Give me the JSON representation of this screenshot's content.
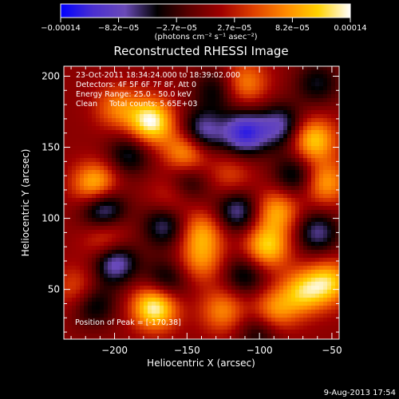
{
  "chart_data": {
    "type": "heatmap",
    "title": "Reconstructed RHESSI Image",
    "xlabel": "Heliocentric X (arcsec)",
    "ylabel": "Heliocentric Y (arcsec)",
    "xlim": [
      -235,
      -45
    ],
    "ylim": [
      15,
      207
    ],
    "x_ticks": [
      -200,
      -150,
      -100,
      -50
    ],
    "x_tick_labels": [
      "−200",
      "−150",
      "−100",
      "−50"
    ],
    "y_ticks": [
      50,
      100,
      150,
      200
    ],
    "y_tick_labels": [
      "50",
      "100",
      "150",
      "200"
    ],
    "colorbar": {
      "vmin": -0.00014,
      "vmax": 0.00014,
      "tick_labels": [
        "−0.00014",
        "−8.2e−05",
        "−2.7e−05",
        "2.7e−05",
        "8.2e−05",
        "0.00014"
      ],
      "units": "(photons cm⁻² s⁻¹ asec⁻²)",
      "stops": [
        "#0000ff",
        "#4a2fd0",
        "#6a4ab8",
        "#000000",
        "#5a0000",
        "#a00000",
        "#e04000",
        "#ff8a00",
        "#ffd200",
        "#ffffff"
      ]
    },
    "annotations": [
      "23-Oct-2011 18:34:24.000 to 18:39:02.000",
      "Detectors: 4F 5F 6F 7F 8F, Att 0",
      "Energy Range: 25.0 - 50.0 keV",
      "Clean     Total counts: 5.65E+03"
    ],
    "peak_label": "Position of Peak = [-170,38]",
    "peak_position": [
      -170,
      38
    ],
    "sources": [
      {
        "x": -172,
        "y": 38,
        "amp": 1.0
      },
      {
        "x": -175,
        "y": 168,
        "amp": 0.95
      },
      {
        "x": -213,
        "y": 123,
        "amp": 0.8
      },
      {
        "x": -150,
        "y": 147,
        "amp": 0.7
      },
      {
        "x": -140,
        "y": 90,
        "amp": 0.55
      },
      {
        "x": -205,
        "y": 83,
        "amp": 0.5
      },
      {
        "x": -198,
        "y": 178,
        "amp": 0.45
      },
      {
        "x": -110,
        "y": 195,
        "amp": 0.5
      },
      {
        "x": -95,
        "y": 80,
        "amp": 0.75
      },
      {
        "x": -88,
        "y": 105,
        "amp": 0.6
      },
      {
        "x": -63,
        "y": 155,
        "amp": 0.75
      },
      {
        "x": -55,
        "y": 125,
        "amp": 0.6
      },
      {
        "x": -52,
        "y": 55,
        "amp": 0.7
      },
      {
        "x": -70,
        "y": 48,
        "amp": 0.65
      },
      {
        "x": -125,
        "y": 35,
        "amp": 0.5
      },
      {
        "x": -140,
        "y": 70,
        "amp": 0.45
      },
      {
        "x": -90,
        "y": 35,
        "amp": 0.55
      },
      {
        "x": -160,
        "y": 115,
        "amp": 0.35
      },
      {
        "x": -120,
        "y": 130,
        "amp": 0.3
      },
      {
        "x": -225,
        "y": 50,
        "amp": 0.4
      },
      {
        "x": -208,
        "y": 108,
        "amp": -0.75
      },
      {
        "x": -200,
        "y": 70,
        "amp": -0.8
      },
      {
        "x": -140,
        "y": 160,
        "amp": -0.7
      },
      {
        "x": -110,
        "y": 160,
        "amp": -0.85
      },
      {
        "x": -85,
        "y": 165,
        "amp": -0.6
      },
      {
        "x": -115,
        "y": 105,
        "amp": -0.6
      },
      {
        "x": -165,
        "y": 95,
        "amp": -0.55
      },
      {
        "x": -215,
        "y": 40,
        "amp": -0.5
      },
      {
        "x": -75,
        "y": 130,
        "amp": -0.5
      },
      {
        "x": -60,
        "y": 90,
        "amp": -0.55
      },
      {
        "x": -165,
        "y": 55,
        "amp": -0.5
      },
      {
        "x": -190,
        "y": 145,
        "amp": -0.45
      },
      {
        "x": -130,
        "y": 190,
        "amp": -0.4
      },
      {
        "x": -150,
        "y": 125,
        "amp": -0.45
      },
      {
        "x": -110,
        "y": 60,
        "amp": -0.45
      },
      {
        "x": -60,
        "y": 195,
        "amp": -0.4
      },
      {
        "x": -100,
        "y": 20,
        "amp": -0.4
      }
    ],
    "grid": false
  },
  "footer": {
    "date": "9-Aug-2013 17:54"
  }
}
